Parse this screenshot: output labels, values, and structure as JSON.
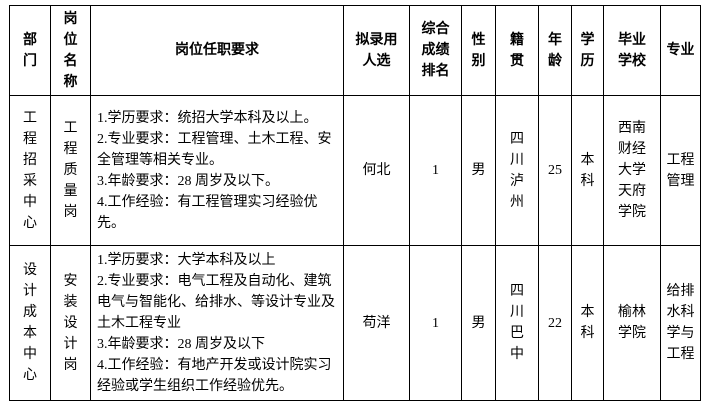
{
  "page": {
    "background_color": "#ffffff",
    "border_color": "#000000",
    "text_color": "#000000"
  },
  "table": {
    "headers": [
      {
        "id": "department",
        "label": "部\n门"
      },
      {
        "id": "position",
        "label": "岗\n位\n名\n称"
      },
      {
        "id": "requirements",
        "label": "岗位任职要求"
      },
      {
        "id": "candidate",
        "label": "拟录用\n人选"
      },
      {
        "id": "rank",
        "label": "综合\n成绩\n排名"
      },
      {
        "id": "gender",
        "label": "性\n别"
      },
      {
        "id": "native",
        "label": "籍\n贯"
      },
      {
        "id": "age",
        "label": "年\n龄"
      },
      {
        "id": "education",
        "label": "学\n历"
      },
      {
        "id": "school",
        "label": "毕业\n学校"
      },
      {
        "id": "major",
        "label": "专业"
      }
    ],
    "rows": [
      {
        "department": "工\n程\n招\n采\n中\n心",
        "position": "工\n程\n质\n量\n岗",
        "requirements": "1.学历要求：统招大学本科及以上。\n2.专业要求：工程管理、土木工程、安全管理等相关专业。\n3.年龄要求：28 周岁及以下。\n4.工作经验：有工程管理实习经验优先。",
        "candidate": "何北",
        "rank": "1",
        "gender": "男",
        "native": "四\n川\n泸\n州",
        "age": "25",
        "education": "本\n科",
        "school": "西南\n财经\n大学\n天府\n学院",
        "major": "工程\n管理"
      },
      {
        "department": "设\n计\n成\n本\n中\n心",
        "position": "安\n装\n设\n计\n岗",
        "requirements": "1.学历要求：大学本科及以上\n2.专业要求：电气工程及自动化、建筑电气与智能化、给排水、等设计专业及土木工程专业\n3.年龄要求：28 周岁及以下\n4.工作经验：有地产开发或设计院实习经验或学生组织工作经验优先。",
        "candidate": "苟洋",
        "rank": "1",
        "gender": "男",
        "native": "四\n川\n巴\n中",
        "age": "22",
        "education": "本\n科",
        "school": "榆林\n学院",
        "major": "给排\n水科\n学与\n工程"
      }
    ]
  }
}
